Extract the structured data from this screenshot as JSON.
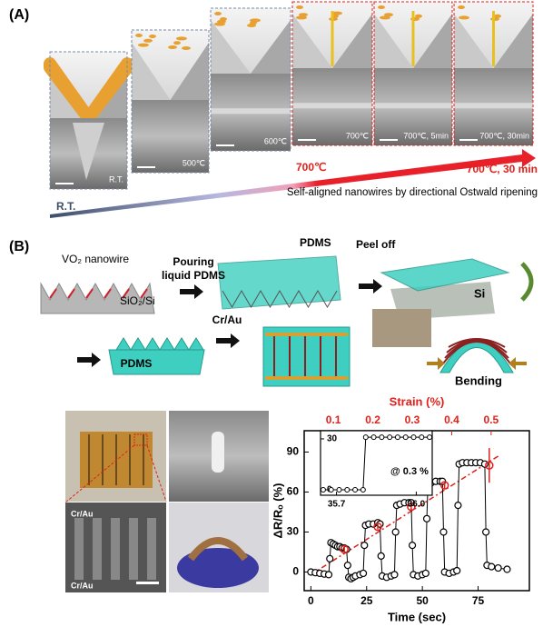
{
  "panel_a": {
    "label": "(A)",
    "tile_labels": [
      "R.T.",
      "500℃",
      "600℃",
      "700℃",
      "700℃, 5min",
      "700℃, 30min"
    ],
    "start_label": "R.T.",
    "mid_label": "700℃",
    "end_label": "700℃, 30 min",
    "caption": "Self-aligned nanowires by directional Ostwald ripening"
  },
  "panel_b": {
    "label": "(B)",
    "nanowire": "VO₂ nanowire",
    "substrate": "SiO₂/Si",
    "pouring": [
      "Pouring",
      "liquid PDMS"
    ],
    "pdms_top": "PDMS",
    "peel_off": "Peel off",
    "si": "Si",
    "pdms_mold": "PDMS",
    "cr_au": "Cr/Au",
    "bending": "Bending",
    "photo_labels": [
      "Cr/Au",
      "Cr/Au"
    ]
  },
  "chart_data": {
    "type": "line",
    "xlabel": "Time (sec)",
    "ylabel": "ΔR/Rₒ (%)",
    "x2label": "Strain (%)",
    "xlim": [
      -3,
      98
    ],
    "ylim": [
      -14,
      106
    ],
    "x2lim": [
      0.026,
      0.597
    ],
    "xticks": [
      0,
      25,
      50,
      75
    ],
    "yticks": [
      0,
      30,
      60,
      90
    ],
    "x2ticks": [
      0.1,
      0.2,
      0.3,
      0.4,
      0.5
    ],
    "x": [
      0,
      2,
      4,
      6,
      8,
      8.5,
      9,
      10,
      11,
      12,
      13,
      14,
      15,
      16,
      16.5,
      17,
      18,
      19,
      20,
      22,
      23.5,
      24,
      24.5,
      26,
      28,
      30,
      31,
      31.5,
      32,
      34,
      36,
      37.5,
      38,
      38.5,
      40,
      42,
      44,
      45,
      45.5,
      46,
      48,
      50,
      51.5,
      52,
      52.5,
      54,
      56,
      58,
      59,
      59.5,
      60,
      62,
      64,
      65.5,
      66,
      66.5,
      68,
      70,
      72,
      74,
      76,
      78,
      78.5,
      79,
      81,
      84,
      88
    ],
    "series": [
      {
        "color": "#000000",
        "values": [
          0,
          -0.5,
          -1,
          -1.5,
          -2,
          10,
          22,
          21,
          20,
          19,
          19,
          18,
          18,
          17,
          5,
          -4,
          -5,
          -4,
          -3,
          -2,
          -1,
          20,
          35,
          36,
          36,
          37,
          36,
          12,
          -3,
          -4,
          -3,
          -2,
          30,
          50,
          51,
          52,
          52,
          52,
          20,
          -2,
          -3,
          -2,
          -1,
          40,
          66,
          67,
          68,
          68,
          68,
          30,
          0,
          -1,
          0,
          1,
          50,
          81,
          82,
          82,
          82,
          82,
          82,
          81,
          30,
          5,
          4,
          3,
          2
        ]
      }
    ],
    "fit": {
      "color": "#e0211b",
      "x": [
        0,
        85
      ],
      "values": [
        -2,
        88
      ]
    },
    "strain_points": {
      "color": "#e0211b",
      "x": [
        15,
        30,
        45,
        60,
        80
      ],
      "values": [
        17,
        34,
        49,
        65,
        80
      ],
      "errors": [
        2,
        2,
        3,
        3,
        13
      ]
    },
    "inset": {
      "xlim": [
        35.64,
        36.06
      ],
      "ylim": [
        -3.2,
        34.8
      ],
      "xticks": [
        35.7,
        {
          "value": 36,
          "label": "36.0"
        }
      ],
      "yticks": [
        0,
        30
      ],
      "x": [
        35.65,
        35.68,
        35.71,
        35.74,
        35.77,
        35.8,
        35.81,
        35.84,
        35.87,
        35.9,
        35.93,
        35.96,
        35.99,
        36.02,
        36.05
      ],
      "values": [
        0,
        0,
        0,
        0,
        0,
        0,
        31,
        31,
        31,
        31,
        31,
        31,
        31,
        31,
        31
      ],
      "annotation": "@ 0.3 %"
    }
  }
}
